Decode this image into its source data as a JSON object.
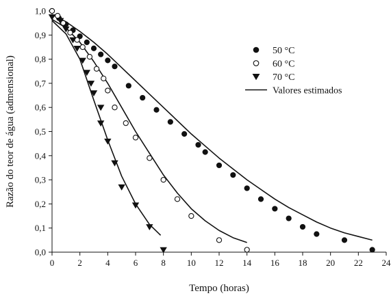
{
  "chart_data": {
    "type": "scatter",
    "xlabel": "Tempo (horas)",
    "ylabel": "Razão do teor de água (admensional)",
    "xlim": [
      0,
      24
    ],
    "ylim": [
      0,
      1
    ],
    "x_ticks": [
      "0",
      "2",
      "4",
      "6",
      "8",
      "10",
      "12",
      "14",
      "16",
      "18",
      "20",
      "22",
      "24"
    ],
    "y_ticks": [
      "0,0",
      "0,1",
      "0,2",
      "0,3",
      "0,4",
      "0,5",
      "0,6",
      "0,7",
      "0,8",
      "0,9",
      "1,0"
    ],
    "grid": false,
    "legend_position": "top-right",
    "colors": {
      "axis": "#111111",
      "marker": "#111111",
      "fit_line": "#111111"
    },
    "series": [
      {
        "name": "50 °C",
        "marker": "filled-circle",
        "points": [
          [
            0,
            1.0
          ],
          [
            0.5,
            0.97
          ],
          [
            1,
            0.945
          ],
          [
            1.5,
            0.92
          ],
          [
            2,
            0.895
          ],
          [
            2.5,
            0.87
          ],
          [
            3,
            0.845
          ],
          [
            3.5,
            0.82
          ],
          [
            4,
            0.795
          ],
          [
            4.5,
            0.77
          ],
          [
            5.5,
            0.69
          ],
          [
            6.5,
            0.64
          ],
          [
            7.5,
            0.59
          ],
          [
            8.5,
            0.54
          ],
          [
            9.5,
            0.49
          ],
          [
            10.5,
            0.445
          ],
          [
            11,
            0.415
          ],
          [
            12,
            0.36
          ],
          [
            13,
            0.32
          ],
          [
            14,
            0.265
          ],
          [
            15,
            0.22
          ],
          [
            16,
            0.18
          ],
          [
            17,
            0.14
          ],
          [
            18,
            0.105
          ],
          [
            19,
            0.075
          ],
          [
            21,
            0.05
          ],
          [
            23,
            0.01
          ]
        ]
      },
      {
        "name": "60 °C",
        "marker": "open-circle",
        "points": [
          [
            0,
            1.0
          ],
          [
            0.4,
            0.98
          ],
          [
            0.8,
            0.95
          ],
          [
            1.3,
            0.91
          ],
          [
            1.8,
            0.88
          ],
          [
            2.2,
            0.85
          ],
          [
            2.7,
            0.81
          ],
          [
            3.2,
            0.76
          ],
          [
            3.7,
            0.72
          ],
          [
            4.0,
            0.67
          ],
          [
            4.5,
            0.6
          ],
          [
            5.3,
            0.535
          ],
          [
            6.0,
            0.475
          ],
          [
            7.0,
            0.39
          ],
          [
            8.0,
            0.3
          ],
          [
            9.0,
            0.22
          ],
          [
            10.0,
            0.15
          ],
          [
            12.0,
            0.05
          ],
          [
            14.0,
            0.01
          ]
        ]
      },
      {
        "name": "70 °C",
        "marker": "filled-triangle-down",
        "points": [
          [
            0,
            0.975
          ],
          [
            0.6,
            0.96
          ],
          [
            1.0,
            0.925
          ],
          [
            1.5,
            0.88
          ],
          [
            1.8,
            0.845
          ],
          [
            2.2,
            0.795
          ],
          [
            2.5,
            0.745
          ],
          [
            2.8,
            0.7
          ],
          [
            3.0,
            0.66
          ],
          [
            3.5,
            0.6
          ],
          [
            3.5,
            0.535
          ],
          [
            4.0,
            0.46
          ],
          [
            4.5,
            0.37
          ],
          [
            5.0,
            0.27
          ],
          [
            6.0,
            0.195
          ],
          [
            7.0,
            0.105
          ],
          [
            8.0,
            0.01
          ]
        ]
      },
      {
        "name": "Valores estimados",
        "type": "line",
        "curves": [
          {
            "for": "50 °C",
            "points": [
              [
                0,
                0.985
              ],
              [
                1,
                0.955
              ],
              [
                2,
                0.915
              ],
              [
                3,
                0.87
              ],
              [
                4,
                0.82
              ],
              [
                5,
                0.765
              ],
              [
                6,
                0.71
              ],
              [
                7,
                0.655
              ],
              [
                8,
                0.6
              ],
              [
                9,
                0.545
              ],
              [
                10,
                0.49
              ],
              [
                11,
                0.44
              ],
              [
                12,
                0.39
              ],
              [
                13,
                0.345
              ],
              [
                14,
                0.3
              ],
              [
                15,
                0.26
              ],
              [
                16,
                0.22
              ],
              [
                17,
                0.185
              ],
              [
                18,
                0.155
              ],
              [
                19,
                0.125
              ],
              [
                20,
                0.1
              ],
              [
                21,
                0.08
              ],
              [
                22,
                0.065
              ],
              [
                23,
                0.05
              ]
            ]
          },
          {
            "for": "60 °C",
            "points": [
              [
                0,
                0.965
              ],
              [
                1,
                0.93
              ],
              [
                2,
                0.87
              ],
              [
                3,
                0.79
              ],
              [
                4,
                0.7
              ],
              [
                5,
                0.6
              ],
              [
                6,
                0.5
              ],
              [
                7,
                0.41
              ],
              [
                8,
                0.32
              ],
              [
                9,
                0.245
              ],
              [
                10,
                0.18
              ],
              [
                11,
                0.13
              ],
              [
                12,
                0.09
              ],
              [
                13,
                0.06
              ],
              [
                14,
                0.04
              ]
            ]
          },
          {
            "for": "70 °C",
            "points": [
              [
                0,
                0.96
              ],
              [
                1,
                0.905
              ],
              [
                2,
                0.8
              ],
              [
                3,
                0.63
              ],
              [
                4,
                0.465
              ],
              [
                5,
                0.315
              ],
              [
                6,
                0.2
              ],
              [
                7,
                0.115
              ],
              [
                7.8,
                0.07
              ]
            ]
          }
        ]
      }
    ]
  }
}
